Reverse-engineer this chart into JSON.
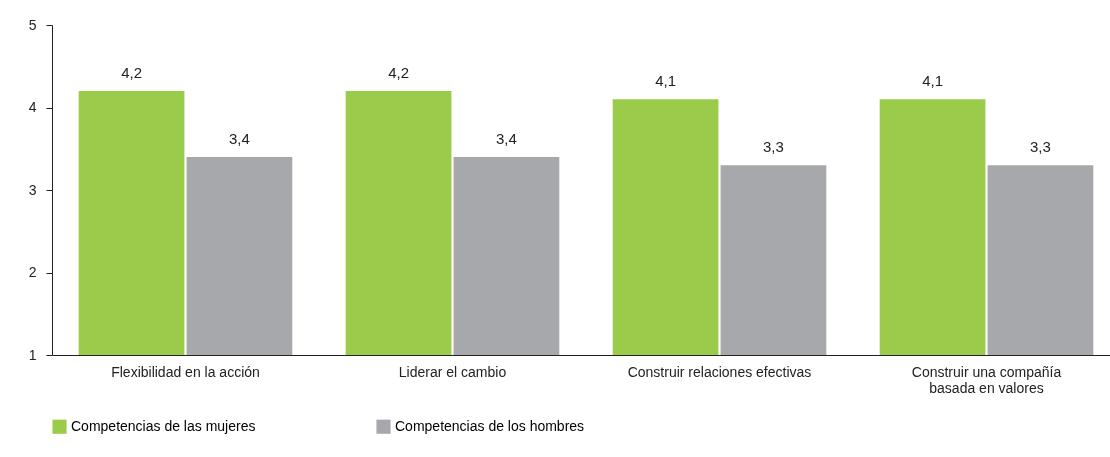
{
  "chart_data": {
    "type": "bar",
    "categories": [
      "Flexibilidad en la acción",
      "Liderar el cambio",
      "Construir relaciones efectivas",
      "Construir una compañía\nbasada en valores"
    ],
    "series": [
      {
        "name": "Competencias de las mujeres",
        "color": "#9bcb4b",
        "values": [
          4.2,
          4.2,
          4.1,
          4.1
        ],
        "value_labels": [
          "4,2",
          "4,2",
          "4,1",
          "4,1"
        ]
      },
      {
        "name": "Competencias de los hombres",
        "color": "#a7a8ab",
        "values": [
          3.4,
          3.4,
          3.3,
          3.3
        ],
        "value_labels": [
          "3,4",
          "3,4",
          "3,3",
          "3,3"
        ]
      }
    ],
    "ylim": [
      1,
      5
    ],
    "yticks": [
      1,
      2,
      3,
      4,
      5
    ],
    "grid": false,
    "legend": "bottom left"
  }
}
